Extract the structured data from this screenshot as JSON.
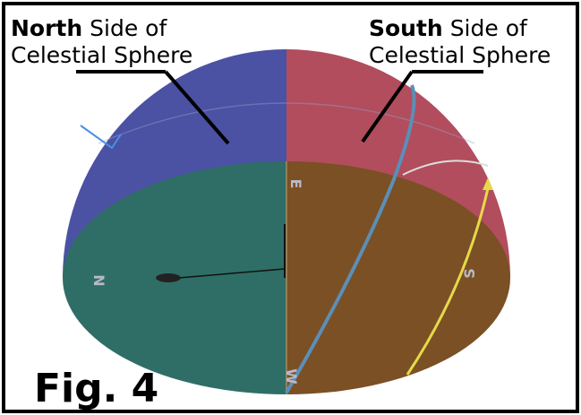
{
  "labels": {
    "north": {
      "bold": "North",
      "rest": "Side of",
      "line2": "Celestial Sphere"
    },
    "south": {
      "bold": "South",
      "rest": "Side of",
      "line2": "Celestial Sphere"
    }
  },
  "compass": {
    "north": "N",
    "south": "S",
    "east": "E",
    "west": "W"
  },
  "figure": "Fig. 4"
}
